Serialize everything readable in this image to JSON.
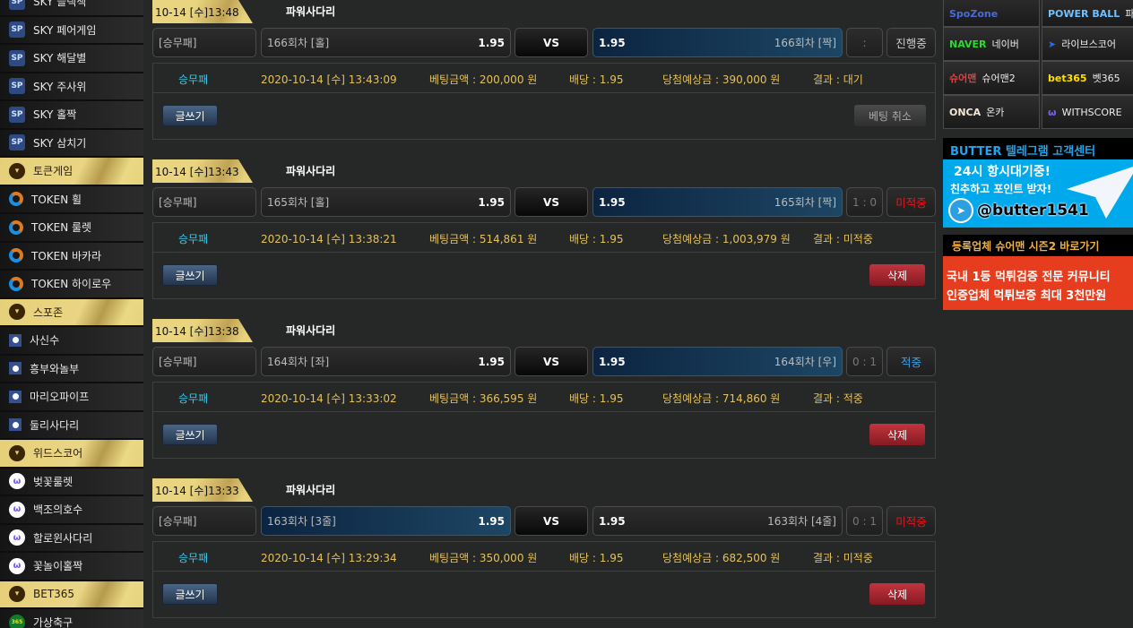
{
  "sidebar": {
    "items": [
      {
        "label": "SKY 블랙잭",
        "type": "sp"
      },
      {
        "label": "SKY 페어게임",
        "type": "sp"
      },
      {
        "label": "SKY 해달별",
        "type": "sp"
      },
      {
        "label": "SKY 주사위",
        "type": "sp"
      },
      {
        "label": "SKY 홀짝",
        "type": "sp"
      },
      {
        "label": "SKY 삼치기",
        "type": "sp"
      },
      {
        "label": "토큰게임",
        "type": "head"
      },
      {
        "label": "TOKEN 휠",
        "type": "token"
      },
      {
        "label": "TOKEN 룰렛",
        "type": "token"
      },
      {
        "label": "TOKEN 바카라",
        "type": "token"
      },
      {
        "label": "TOKEN 하이로우",
        "type": "token"
      },
      {
        "label": "스포존",
        "type": "head"
      },
      {
        "label": "사신수",
        "type": "spo"
      },
      {
        "label": "흥부와놀부",
        "type": "spo"
      },
      {
        "label": "마리오파이프",
        "type": "spo"
      },
      {
        "label": "둘리사다리",
        "type": "spo"
      },
      {
        "label": "위드스코어",
        "type": "head"
      },
      {
        "label": "벚꽃룰렛",
        "type": "ws"
      },
      {
        "label": "백조의호수",
        "type": "ws"
      },
      {
        "label": "할로윈사다리",
        "type": "ws"
      },
      {
        "label": "꽃놀이홀짝",
        "type": "ws"
      },
      {
        "label": "BET365",
        "type": "head"
      },
      {
        "label": "가상축구",
        "type": "bet"
      }
    ]
  },
  "bets": [
    {
      "date": "10-14 [수]13:48",
      "game": "파워사다리",
      "market": "[승무패]",
      "home": "166회차 [홀]",
      "home_odds": "1.95",
      "vs": "VS",
      "away_odds": "1.95",
      "away": "166회차 [짝]",
      "selected": "away",
      "score": ":",
      "status": "진행중",
      "status_color": "#cccccc",
      "info_type": "승무패",
      "bet_time": "2020-10-14 [수] 13:43:09",
      "amount": "베팅금액 : 200,000 원",
      "odds": "배당 : 1.95",
      "expected": "당첨예상금 : 390,000 원",
      "result": "결과 : 대기",
      "write_label": "글쓰기",
      "action_label": "베팅 취소",
      "action": "cancel"
    },
    {
      "date": "10-14 [수]13:43",
      "game": "파워사다리",
      "market": "[승무패]",
      "home": "165회차 [홀]",
      "home_odds": "1.95",
      "vs": "VS",
      "away_odds": "1.95",
      "away": "165회차 [짝]",
      "selected": "away",
      "score": "1 : 0",
      "status": "미적중",
      "status_color": "#e8141e",
      "info_type": "승무패",
      "bet_time": "2020-10-14 [수] 13:38:21",
      "amount": "베팅금액 : 514,861 원",
      "odds": "배당 : 1.95",
      "expected": "당첨예상금 : 1,003,979 원",
      "result": "결과 : 미적중",
      "write_label": "글쓰기",
      "action_label": "삭제",
      "action": "delete"
    },
    {
      "date": "10-14 [수]13:38",
      "game": "파워사다리",
      "market": "[승무패]",
      "home": "164회차 [좌]",
      "home_odds": "1.95",
      "vs": "VS",
      "away_odds": "1.95",
      "away": "164회차 [우]",
      "selected": "away",
      "score": "0 : 1",
      "status": "적중",
      "status_color": "#3aa0e8",
      "info_type": "승무패",
      "bet_time": "2020-10-14 [수] 13:33:02",
      "amount": "베팅금액 : 366,595 원",
      "odds": "배당 : 1.95",
      "expected": "당첨예상금 : 714,860 원",
      "result": "결과 : 적중",
      "write_label": "글쓰기",
      "action_label": "삭제",
      "action": "delete"
    },
    {
      "date": "10-14 [수]13:33",
      "game": "파워사다리",
      "market": "[승무패]",
      "home": "163회차 [3줄]",
      "home_odds": "1.95",
      "vs": "VS",
      "away_odds": "1.95",
      "away": "163회차 [4줄]",
      "selected": "home",
      "score": "0 : 1",
      "status": "미적중",
      "status_color": "#e8141e",
      "info_type": "승무패",
      "bet_time": "2020-10-14 [수] 13:29:34",
      "amount": "베팅금액 : 350,000 원",
      "odds": "배당 : 1.95",
      "expected": "당첨예상금 : 682,500 원",
      "result": "결과 : 미적중",
      "write_label": "글쓰기",
      "action_label": "삭제",
      "action": "delete"
    }
  ],
  "links": [
    {
      "logo": "SpoZone",
      "label": "",
      "logo_color": "#4a6ad8"
    },
    {
      "logo": "POWER BALL",
      "label": "파워볼",
      "logo_color": "#6fc1ff"
    },
    {
      "logo": "NAVER",
      "label": "네이버",
      "logo_color": "#2ed82e"
    },
    {
      "logo": "➤",
      "label": "라이브스코어",
      "logo_color": "#2a6de0"
    },
    {
      "logo": "슈어맨",
      "label": "슈어맨2",
      "logo_color": "#e04040"
    },
    {
      "logo": "bet365",
      "label": "벳365",
      "logo_color": "#ffe000"
    },
    {
      "logo": "ONCA",
      "label": "온카",
      "logo_color": "#f4e6d6"
    },
    {
      "logo": "ω",
      "label": "WITHSCORE",
      "logo_color": "#7a5cf0"
    }
  ],
  "banners": {
    "telegram": {
      "title": "BUTTER 텔레그램 고객센터",
      "line1": "24시 항시대기중!",
      "line2": "친추하고 포인트 받자!",
      "handle": "@butter1541",
      "color": "#00a8ec"
    },
    "sureman": {
      "title": "등록업체 슈어맨 시즌2 바로가기",
      "line1": "국내 1등 먹튀검증 전문 커뮤니티",
      "line2": "인증업체 먹튀보증 최대 3천만원",
      "color": "#e63d1e"
    }
  }
}
